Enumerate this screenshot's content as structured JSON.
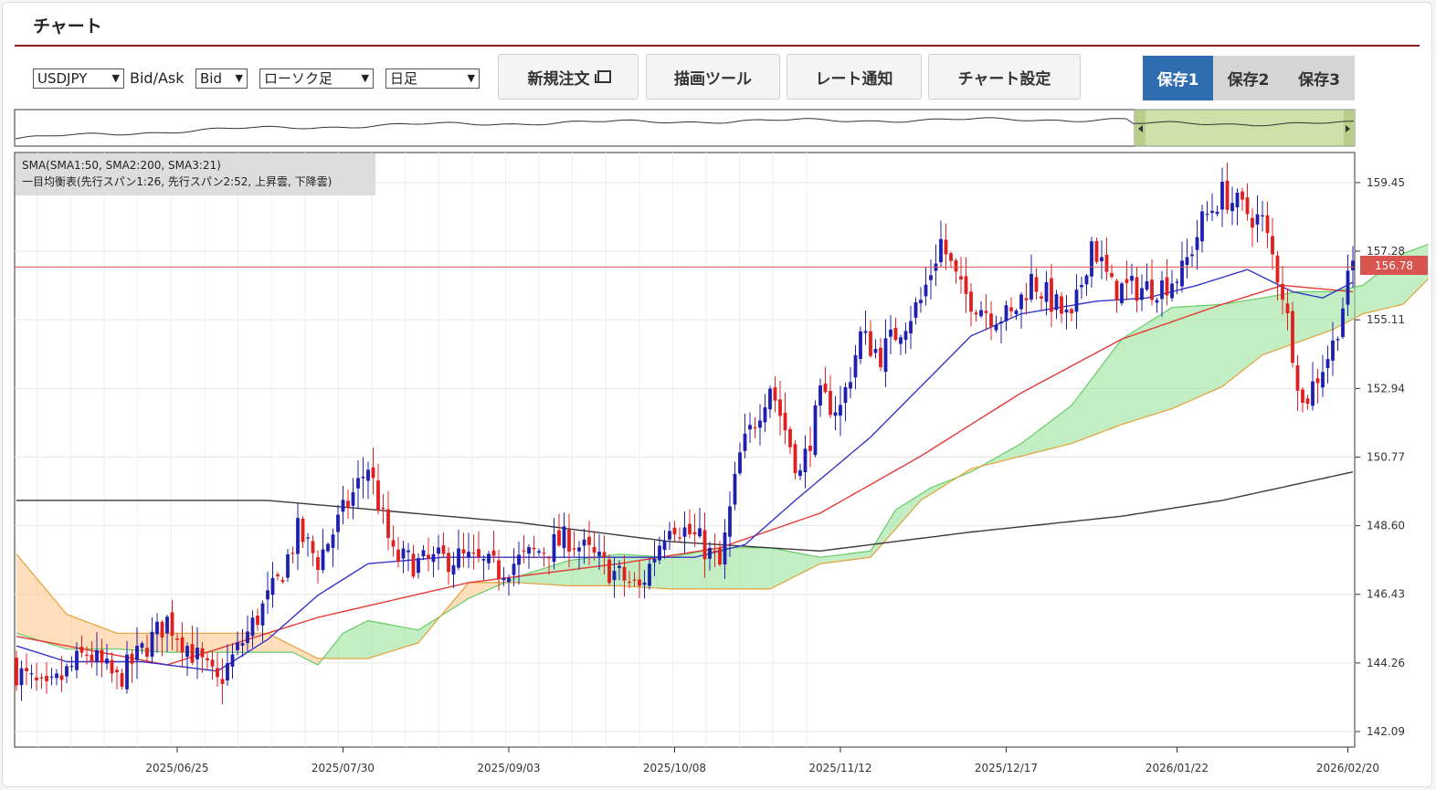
{
  "header": {
    "title": "チャート"
  },
  "toolbar": {
    "symbol": "USDJPY",
    "bidask_label": "Bid/Ask",
    "bidask": "Bid",
    "chart_type": "ローソク足",
    "period": "日足",
    "buttons": {
      "new_order": "新規注文",
      "draw_tool": "描画ツール",
      "rate_alert": "レート通知",
      "chart_settings": "チャート設定"
    },
    "save": [
      "保存1",
      "保存2",
      "保存3"
    ]
  },
  "colors": {
    "bull": "#1f1fb0",
    "bear": "#e02020",
    "sma1": "#e53935",
    "sma2": "#3a3a3a",
    "sma3": "#3535c8",
    "cloud_up": "#9be39b",
    "cloud_down": "#ffc890",
    "current_price": "#d9534f",
    "save_active": "#2f6db1"
  },
  "chart_data": {
    "type": "candlestick",
    "legend": [
      "SMA(SMA1:50, SMA2:200, SMA3:21)",
      "一目均衡表(先行スパン1:26, 先行スパン2:52, 上昇雲, 下降雲)"
    ],
    "y_ticks": [
      "159.45",
      "157.28",
      "155.11",
      "152.94",
      "150.77",
      "148.60",
      "146.43",
      "144.26",
      "142.09"
    ],
    "x_ticks": [
      "2025/06/25",
      "2025/07/30",
      "2025/09/03",
      "2025/10/08",
      "2025/11/12",
      "2025/12/17",
      "2026/01/22",
      "2026/02/20"
    ],
    "current_price": "156.78",
    "ylim": [
      141.6,
      160.4
    ],
    "close_waypoints": [
      [
        0,
        144.0
      ],
      [
        6,
        143.3
      ],
      [
        14,
        144.6
      ],
      [
        20,
        143.7
      ],
      [
        30,
        145.6
      ],
      [
        35,
        144.6
      ],
      [
        40,
        143.6
      ],
      [
        46,
        145.2
      ],
      [
        52,
        146.8
      ],
      [
        56,
        148.4
      ],
      [
        60,
        147.5
      ],
      [
        64,
        148.7
      ],
      [
        70,
        150.5
      ],
      [
        75,
        147.6
      ],
      [
        80,
        147.4
      ],
      [
        88,
        147.6
      ],
      [
        96,
        147.2
      ],
      [
        104,
        147.8
      ],
      [
        110,
        148.2
      ],
      [
        118,
        147.2
      ],
      [
        124,
        146.6
      ],
      [
        130,
        148.8
      ],
      [
        136,
        148.1
      ],
      [
        140,
        147.3
      ],
      [
        144,
        150.8
      ],
      [
        150,
        153.1
      ],
      [
        156,
        150.2
      ],
      [
        160,
        152.6
      ],
      [
        164,
        152.3
      ],
      [
        168,
        154.6
      ],
      [
        172,
        154.0
      ],
      [
        176,
        154.9
      ],
      [
        180,
        155.7
      ],
      [
        184,
        157.6
      ],
      [
        188,
        156.0
      ],
      [
        194,
        155.3
      ],
      [
        198,
        155.2
      ],
      [
        202,
        156.4
      ],
      [
        206,
        155.7
      ],
      [
        210,
        155.0
      ],
      [
        214,
        157.6
      ],
      [
        218,
        156.1
      ],
      [
        224,
        156.1
      ],
      [
        228,
        156.2
      ],
      [
        232,
        156.6
      ],
      [
        236,
        158.2
      ],
      [
        240,
        159.1
      ],
      [
        244,
        158.6
      ],
      [
        248,
        158.2
      ],
      [
        252,
        156.0
      ],
      [
        256,
        152.4
      ],
      [
        262,
        154.3
      ],
      [
        266,
        156.9
      ]
    ],
    "sma1_waypoints": [
      [
        0,
        145.1
      ],
      [
        30,
        144.2
      ],
      [
        60,
        145.7
      ],
      [
        90,
        146.8
      ],
      [
        120,
        147.4
      ],
      [
        140,
        147.9
      ],
      [
        160,
        149.0
      ],
      [
        180,
        150.8
      ],
      [
        200,
        152.8
      ],
      [
        220,
        154.5
      ],
      [
        240,
        155.6
      ],
      [
        252,
        156.2
      ],
      [
        266,
        156.0
      ]
    ],
    "sma2_waypoints": [
      [
        0,
        149.4
      ],
      [
        50,
        149.4
      ],
      [
        100,
        148.7
      ],
      [
        130,
        148.1
      ],
      [
        160,
        147.8
      ],
      [
        190,
        148.4
      ],
      [
        220,
        148.9
      ],
      [
        240,
        149.4
      ],
      [
        266,
        150.3
      ]
    ],
    "sma3_waypoints": [
      [
        0,
        144.8
      ],
      [
        10,
        144.3
      ],
      [
        25,
        144.3
      ],
      [
        40,
        144.0
      ],
      [
        50,
        145.0
      ],
      [
        60,
        146.4
      ],
      [
        70,
        147.4
      ],
      [
        85,
        147.6
      ],
      [
        100,
        147.6
      ],
      [
        120,
        147.6
      ],
      [
        135,
        147.6
      ],
      [
        145,
        148.0
      ],
      [
        155,
        149.4
      ],
      [
        170,
        151.4
      ],
      [
        180,
        153.0
      ],
      [
        190,
        154.6
      ],
      [
        200,
        155.3
      ],
      [
        215,
        155.7
      ],
      [
        225,
        155.8
      ],
      [
        235,
        156.2
      ],
      [
        245,
        156.7
      ],
      [
        254,
        156.0
      ],
      [
        260,
        155.8
      ],
      [
        266,
        156.3
      ]
    ],
    "span1_waypoints": [
      [
        0,
        145.2
      ],
      [
        10,
        144.7
      ],
      [
        20,
        144.7
      ],
      [
        30,
        144.6
      ],
      [
        40,
        144.6
      ],
      [
        50,
        144.6
      ],
      [
        55,
        144.6
      ],
      [
        60,
        144.2
      ],
      [
        65,
        145.2
      ],
      [
        70,
        145.6
      ],
      [
        80,
        145.3
      ],
      [
        90,
        146.3
      ],
      [
        100,
        147.0
      ],
      [
        110,
        147.5
      ],
      [
        120,
        147.7
      ],
      [
        130,
        147.6
      ],
      [
        140,
        147.9
      ],
      [
        150,
        147.9
      ],
      [
        160,
        147.6
      ],
      [
        170,
        147.8
      ],
      [
        175,
        149.1
      ],
      [
        182,
        149.8
      ],
      [
        190,
        150.3
      ],
      [
        200,
        151.2
      ],
      [
        210,
        152.4
      ],
      [
        220,
        154.5
      ],
      [
        230,
        155.5
      ],
      [
        240,
        155.6
      ],
      [
        248,
        155.8
      ],
      [
        255,
        156.0
      ],
      [
        262,
        156.0
      ],
      [
        268,
        156.2
      ],
      [
        276,
        157.2
      ],
      [
        281,
        157.5
      ]
    ],
    "span2_waypoints": [
      [
        0,
        147.7
      ],
      [
        10,
        145.8
      ],
      [
        20,
        145.2
      ],
      [
        30,
        145.2
      ],
      [
        40,
        145.2
      ],
      [
        50,
        145.2
      ],
      [
        55,
        144.8
      ],
      [
        60,
        144.4
      ],
      [
        70,
        144.4
      ],
      [
        80,
        144.9
      ],
      [
        90,
        146.8
      ],
      [
        100,
        146.8
      ],
      [
        110,
        146.7
      ],
      [
        120,
        146.7
      ],
      [
        130,
        146.6
      ],
      [
        140,
        146.6
      ],
      [
        150,
        146.6
      ],
      [
        160,
        147.4
      ],
      [
        170,
        147.6
      ],
      [
        180,
        149.4
      ],
      [
        190,
        150.4
      ],
      [
        200,
        150.8
      ],
      [
        210,
        151.2
      ],
      [
        220,
        151.8
      ],
      [
        230,
        152.3
      ],
      [
        240,
        153.0
      ],
      [
        248,
        154.0
      ],
      [
        255,
        154.4
      ],
      [
        262,
        154.8
      ],
      [
        268,
        155.3
      ],
      [
        276,
        155.6
      ],
      [
        281,
        156.4
      ]
    ]
  }
}
